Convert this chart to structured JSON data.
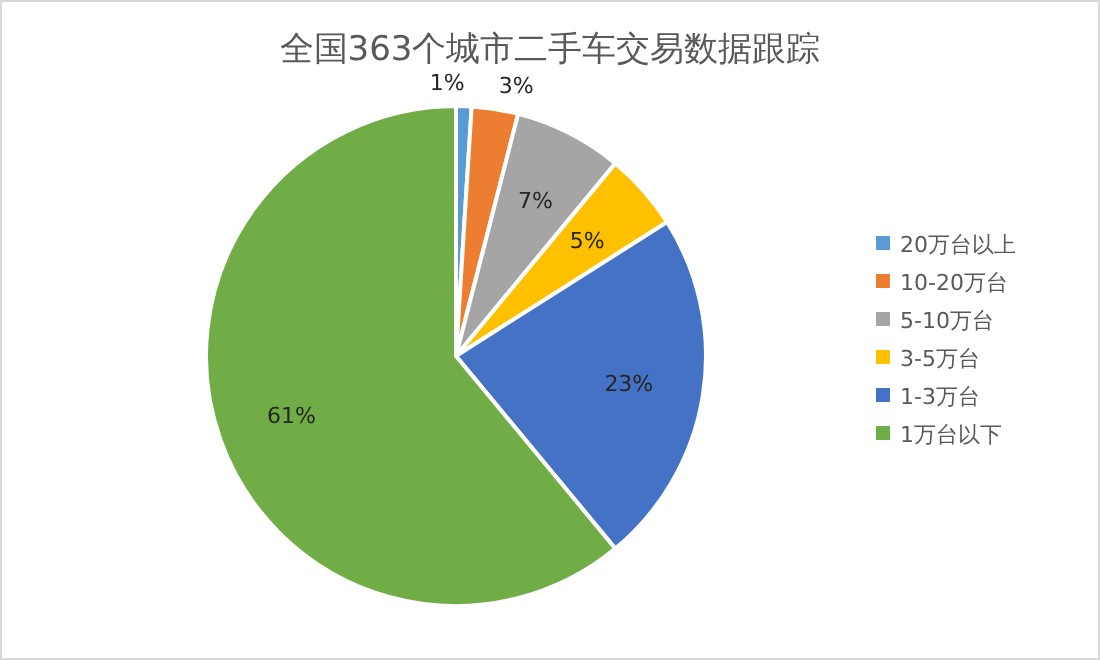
{
  "chart_data": {
    "type": "pie",
    "title": "全国363个城市二手车交易数据跟踪",
    "categories": [
      "20万台以上",
      "10-20万台",
      "5-10万台",
      "3-5万台",
      "1-3万台",
      "1万台以下"
    ],
    "values": [
      1,
      3,
      7,
      5,
      23,
      61
    ],
    "colors": [
      "#5b9bd5",
      "#ed7d31",
      "#a5a5a5",
      "#ffc000",
      "#4472c4",
      "#70ad47"
    ],
    "value_labels": [
      "1%",
      "3%",
      "7%",
      "5%",
      "23%",
      "61%"
    ],
    "legend": "right"
  }
}
